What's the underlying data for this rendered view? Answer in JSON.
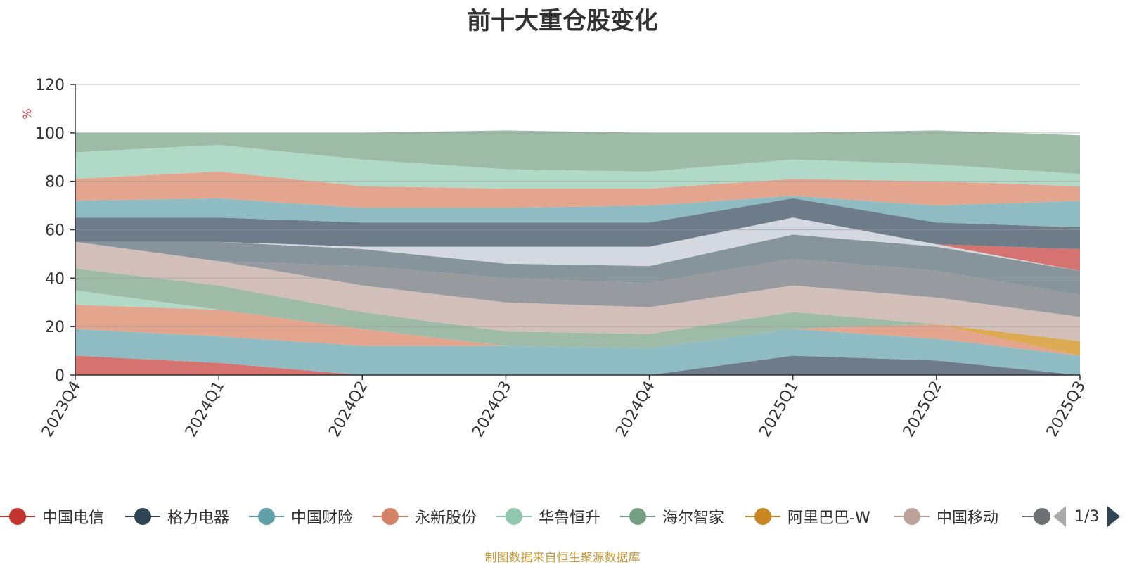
{
  "chart_data": {
    "type": "area",
    "stacked": true,
    "title": "前十大重仓股变化",
    "ylabel": "%",
    "ylim": [
      0,
      120
    ],
    "yticks": [
      0,
      20,
      40,
      60,
      80,
      100,
      120
    ],
    "grid": true,
    "legend_position": "bottom",
    "categories": [
      "2023Q4",
      "2024Q1",
      "2024Q2",
      "2024Q3",
      "2024Q4",
      "2025Q1",
      "2025Q2",
      "2025Q3"
    ],
    "series": [
      {
        "name": "格力电器",
        "color": "#6e7b88",
        "values": [
          0,
          0,
          0,
          0,
          0,
          8,
          6,
          0
        ]
      },
      {
        "name": "中国电信",
        "color": "#d47370",
        "values": [
          8,
          5,
          0,
          0,
          0,
          0,
          0,
          0
        ]
      },
      {
        "name": "中国财险",
        "color": "#8fbcc2",
        "values": [
          11,
          11,
          12,
          12,
          11,
          11,
          9,
          8
        ]
      },
      {
        "name": "永新股份",
        "color": "#e3a58e",
        "values": [
          10,
          11,
          7,
          0,
          0,
          0,
          6,
          0
        ]
      },
      {
        "name": "阿里巴巴-W",
        "color": "#dcaa52",
        "values": [
          0,
          0,
          0,
          0,
          0,
          0,
          0,
          6
        ]
      },
      {
        "name": "华鲁恒升",
        "color": "#b1d9c7",
        "values": [
          6,
          0,
          0,
          0,
          0,
          0,
          0,
          0
        ]
      },
      {
        "name": "海尔智家",
        "color": "#9dbba6",
        "values": [
          9,
          10,
          7,
          6,
          6,
          7,
          0,
          0
        ]
      },
      {
        "name": "中国移动",
        "color": "#d3bfba",
        "values": [
          11,
          10,
          11,
          12,
          11,
          11,
          11,
          10
        ]
      },
      {
        "name": "",
        "color": "#979a9f",
        "values": [
          0,
          0,
          8,
          10,
          10,
          11,
          11,
          9
        ]
      },
      {
        "name": "",
        "color": "#87949b",
        "values": [
          0,
          8,
          7,
          6,
          7,
          10,
          10,
          10
        ]
      },
      {
        "name": "",
        "color": "#d4d9e1",
        "values": [
          0,
          0,
          1,
          7,
          8,
          7,
          1,
          0
        ]
      },
      {
        "name": "中国电信",
        "color": "#d47370",
        "values": [
          0,
          0,
          0,
          0,
          0,
          0,
          0,
          9
        ]
      },
      {
        "name": "格力电器",
        "color": "#6e7b88",
        "values": [
          10,
          10,
          10,
          10,
          10,
          8,
          9,
          9
        ]
      },
      {
        "name": "中国财险",
        "color": "#8fbcc2",
        "values": [
          7,
          8,
          6,
          6,
          7,
          1,
          7,
          11
        ]
      },
      {
        "name": "永新股份",
        "color": "#e3a58e",
        "values": [
          9,
          11,
          9,
          8,
          7,
          7,
          10,
          6
        ]
      },
      {
        "name": "华鲁恒升",
        "color": "#b1d9c7",
        "values": [
          11,
          11,
          11,
          8,
          7,
          8,
          7,
          5
        ]
      },
      {
        "name": "海尔智家",
        "color": "#9dbba6",
        "values": [
          8,
          5,
          11,
          16,
          16,
          11,
          14,
          16
        ]
      }
    ]
  },
  "legend": {
    "items": [
      {
        "label": "中国电信",
        "color": "#c23531"
      },
      {
        "label": "格力电器",
        "color": "#2f4554"
      },
      {
        "label": "中国财险",
        "color": "#61a0a8"
      },
      {
        "label": "永新股份",
        "color": "#d48265"
      },
      {
        "label": "华鲁恒升",
        "color": "#91c7ae"
      },
      {
        "label": "海尔智家",
        "color": "#749f83"
      },
      {
        "label": "阿里巴巴-W",
        "color": "#ca8622"
      },
      {
        "label": "中国移动",
        "color": "#bda29a"
      }
    ],
    "cut_color": "#6e7074",
    "pager": "1/3"
  },
  "footer": {
    "note": "制图数据来自恒生聚源数据库"
  }
}
